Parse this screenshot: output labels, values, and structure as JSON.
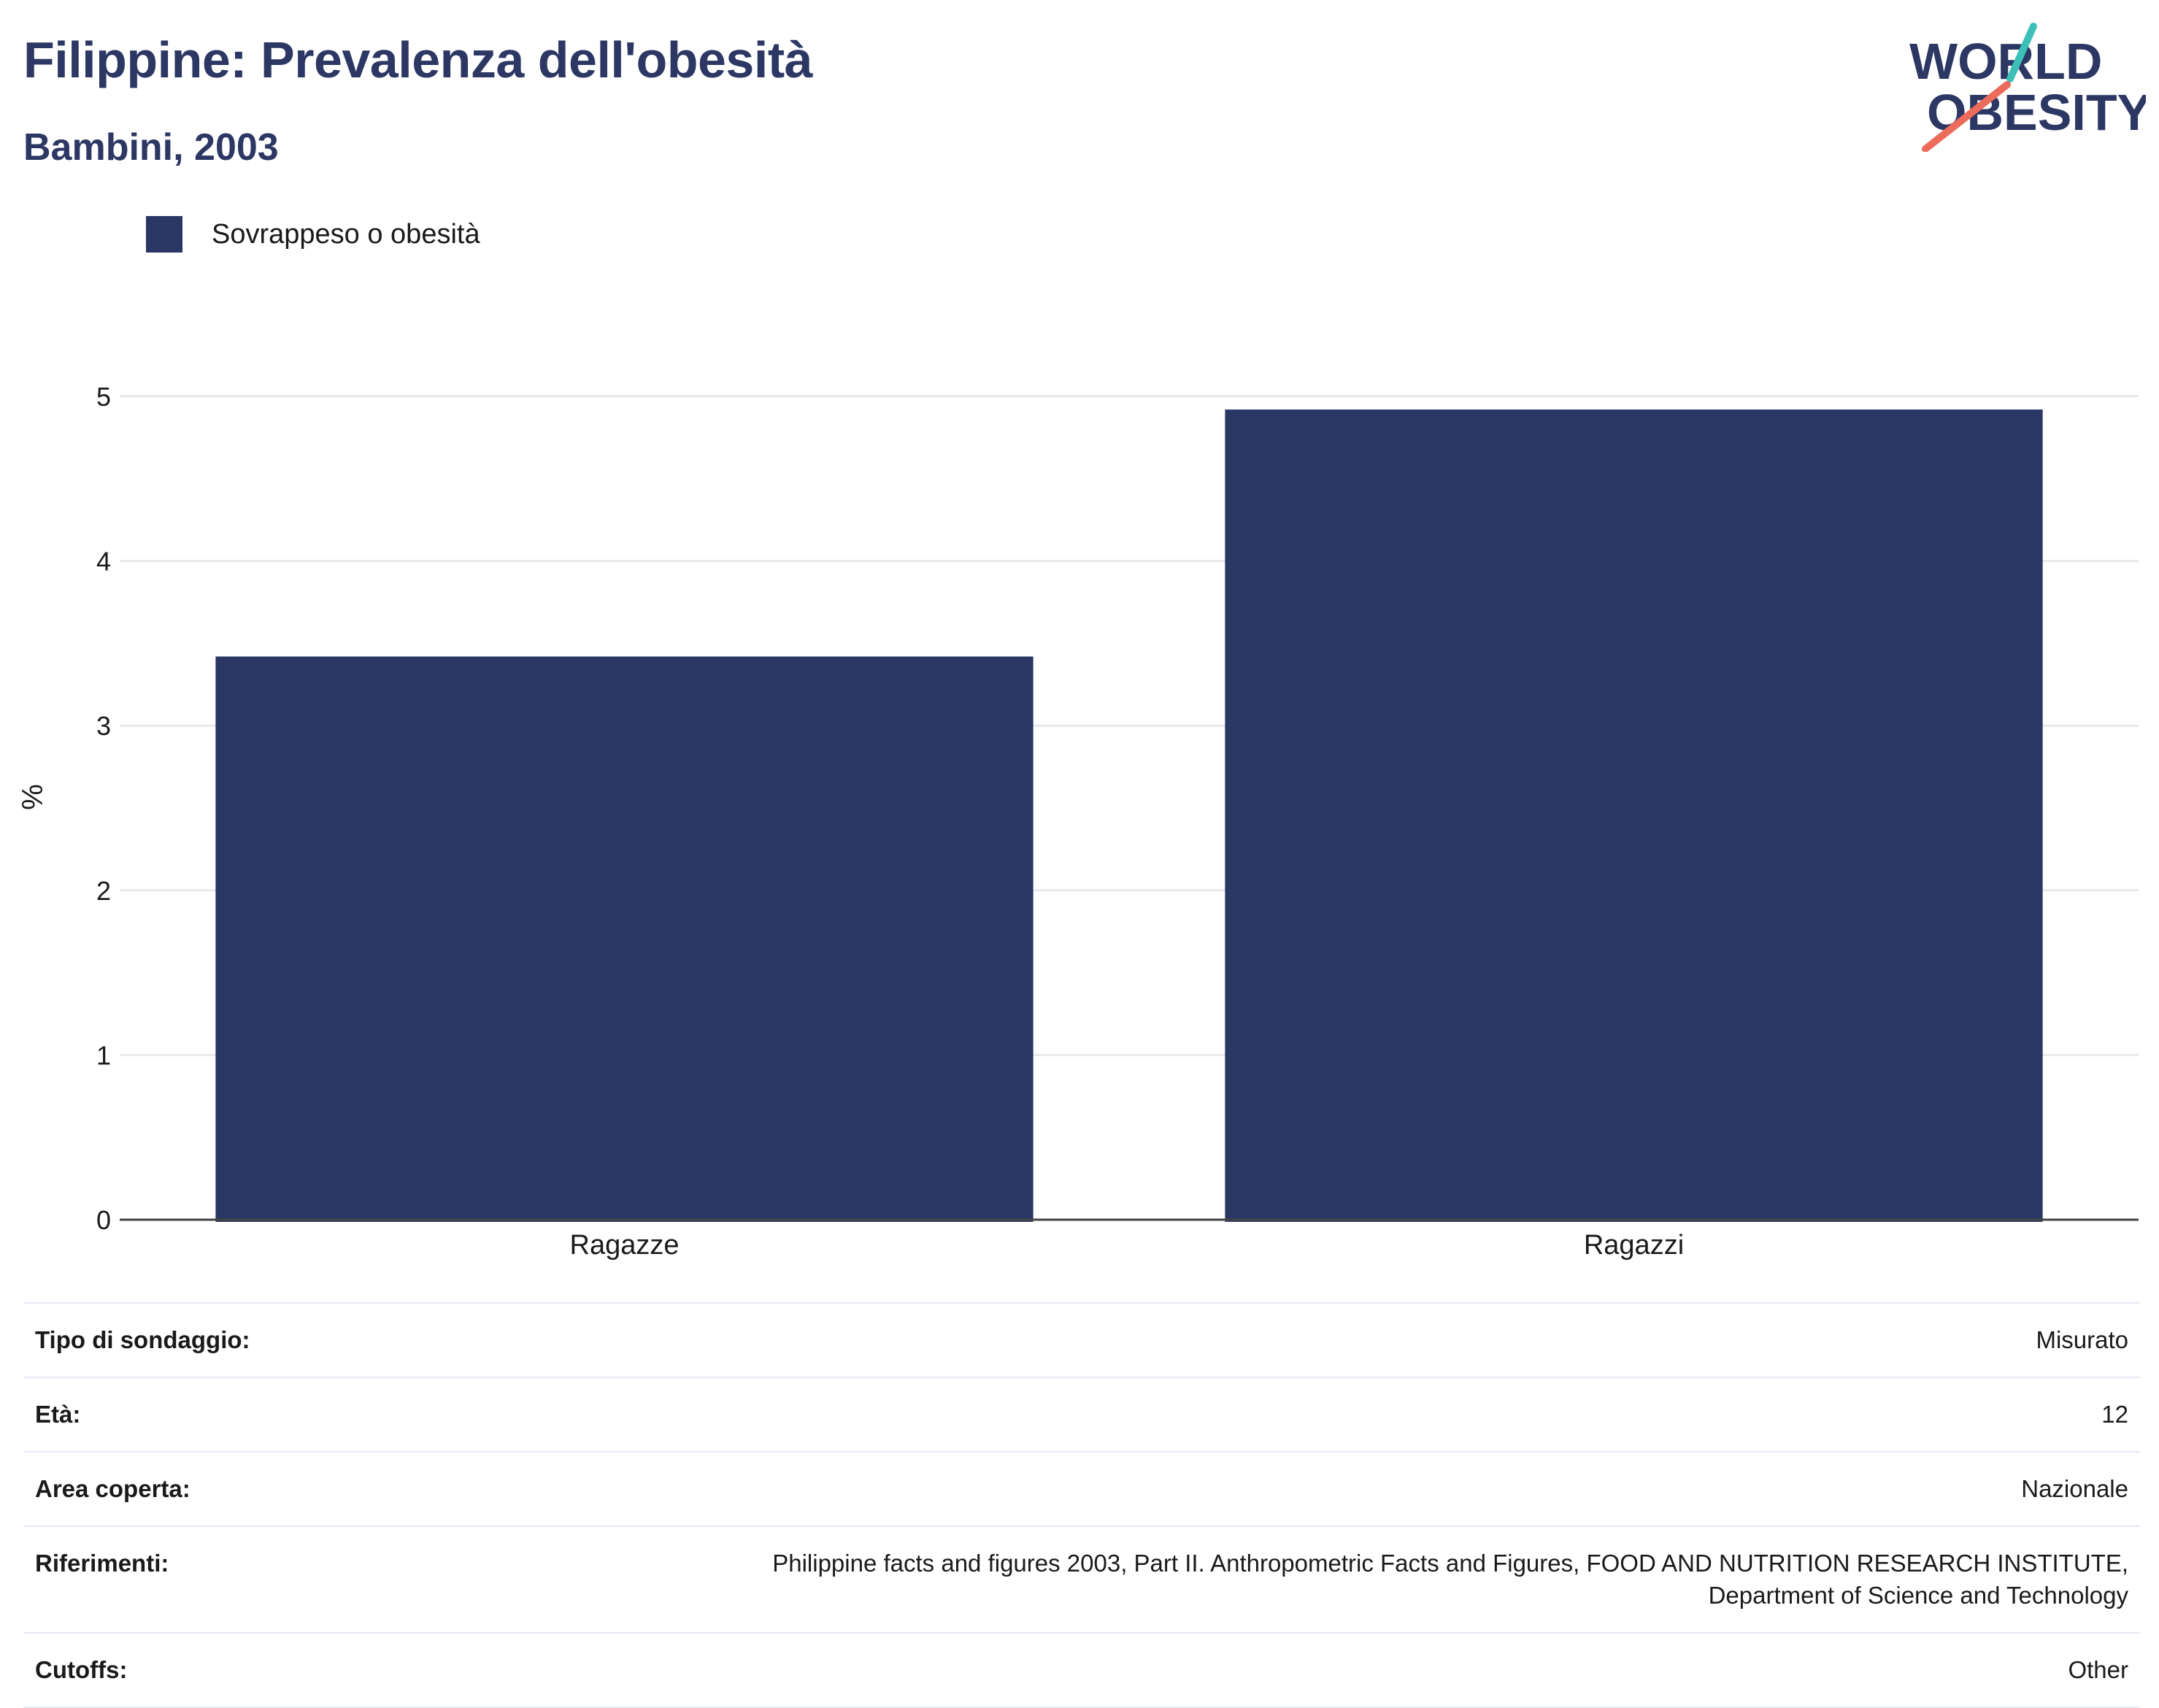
{
  "header": {
    "title": "Filippine: Prevalenza dell'obesità",
    "subtitle": "Bambini, 2003"
  },
  "logo": {
    "line1": "WORLD",
    "line2": "OBESITY"
  },
  "chart_data": {
    "type": "bar",
    "categories": [
      "Ragazze",
      "Ragazzi"
    ],
    "series": [
      {
        "name": "Sovrappeso o obesità",
        "values": [
          3.42,
          4.92
        ],
        "color": "#2a3663"
      }
    ],
    "ylabel": "%",
    "ylim": [
      0,
      5
    ],
    "yticks": [
      0,
      1,
      2,
      3,
      4,
      5
    ],
    "grid": true,
    "legend_position": "top-left"
  },
  "details": [
    {
      "label": "Tipo di sondaggio:",
      "value": "Misurato"
    },
    {
      "label": "Età:",
      "value": "12"
    },
    {
      "label": "Area coperta:",
      "value": "Nazionale"
    },
    {
      "label": "Riferimenti:",
      "value": "Philippine facts and figures 2003, Part II. Anthropometric Facts and Figures, FOOD AND NUTRITION RESEARCH INSTITUTE, Department of Science and Technology"
    },
    {
      "label": "Cutoffs:",
      "value": "Other"
    }
  ]
}
